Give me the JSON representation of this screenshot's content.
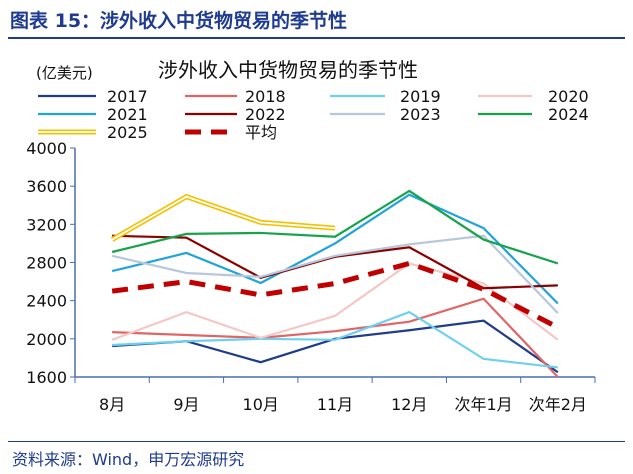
{
  "header": {
    "title": "图表 15：涉外收入中货物贸易的季节性"
  },
  "footer": {
    "source": "资料来源：Wind，申万宏源研究"
  },
  "chart_data": {
    "type": "line",
    "title": "涉外收入中货物贸易的季节性",
    "unit": "(亿美元)",
    "categories": [
      "8月",
      "9月",
      "10月",
      "11月",
      "12月",
      "次年1月",
      "次年2月"
    ],
    "ylim": [
      1600,
      4000
    ],
    "yticks": [
      1600,
      2000,
      2400,
      2800,
      3200,
      3600,
      4000
    ],
    "grid": false,
    "legend": "top",
    "series": [
      {
        "name": "2017",
        "color": "#1f3c88",
        "style": "solid",
        "values": [
          1925,
          1975,
          1755,
          2000,
          2090,
          2190,
          1650
        ]
      },
      {
        "name": "2018",
        "color": "#e06666",
        "style": "solid",
        "values": [
          2070,
          2040,
          2010,
          2080,
          2180,
          2420,
          1600
        ]
      },
      {
        "name": "2019",
        "color": "#6dd0f0",
        "style": "solid",
        "values": [
          1935,
          1975,
          2000,
          1990,
          2280,
          1790,
          1700
        ]
      },
      {
        "name": "2020",
        "color": "#f6c6c6",
        "style": "solid",
        "values": [
          1990,
          2280,
          2010,
          2240,
          2790,
          2580,
          1990
        ]
      },
      {
        "name": "2021",
        "color": "#1fa3dc",
        "style": "solid",
        "values": [
          2710,
          2900,
          2585,
          3000,
          3510,
          3160,
          2370
        ]
      },
      {
        "name": "2022",
        "color": "#8b0000",
        "style": "solid",
        "values": [
          3080,
          3060,
          2640,
          2860,
          2960,
          2530,
          2560
        ]
      },
      {
        "name": "2023",
        "color": "#b8c8dc",
        "style": "solid",
        "values": [
          2870,
          2690,
          2650,
          2870,
          2990,
          3080,
          2270
        ]
      },
      {
        "name": "2024",
        "color": "#17a34a",
        "style": "solid",
        "values": [
          2910,
          3100,
          3110,
          3070,
          3550,
          3040,
          2790
        ]
      },
      {
        "name": "2025",
        "color": "#f5c000",
        "style": "double",
        "values": [
          3040,
          3490,
          3220,
          3160,
          null,
          null,
          null
        ]
      },
      {
        "name": "平均",
        "color": "#c00000",
        "style": "dashed",
        "values": [
          2500,
          2600,
          2460,
          2580,
          2790,
          2520,
          2120
        ]
      }
    ]
  }
}
